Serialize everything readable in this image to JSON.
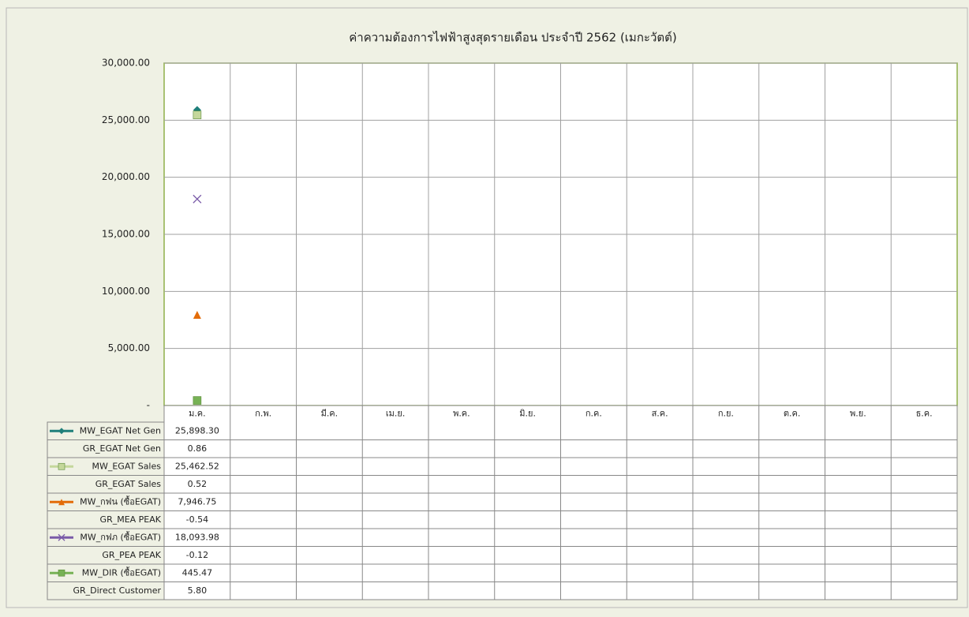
{
  "chart_data": {
    "type": "scatter",
    "title": "ค่าความต้องการไฟฟ้าสูงสุดรายเดือน ประจำปี 2562 (เมกะวัตต์)",
    "categories": [
      "ม.ค.",
      "ก.พ.",
      "มี.ค.",
      "เม.ย.",
      "พ.ค.",
      "มิ.ย.",
      "ก.ค.",
      "ส.ค.",
      "ก.ย.",
      "ต.ค.",
      "พ.ย.",
      "ธ.ค."
    ],
    "ylim": [
      0,
      30000
    ],
    "yticks": [
      {
        "value": 0,
        "label": "-"
      },
      {
        "value": 5000,
        "label": "5,000.00"
      },
      {
        "value": 10000,
        "label": "10,000.00"
      },
      {
        "value": 15000,
        "label": "15,000.00"
      },
      {
        "value": 20000,
        "label": "20,000.00"
      },
      {
        "value": 25000,
        "label": "25,000.00"
      },
      {
        "value": 30000,
        "label": "30,000.00"
      }
    ],
    "grid": true,
    "series": [
      {
        "name": "MW_EGAT Net Gen",
        "color": "#1f7f7a",
        "marker": "diamond",
        "values": [
          25898.3,
          null,
          null,
          null,
          null,
          null,
          null,
          null,
          null,
          null,
          null,
          null
        ],
        "value_labels": [
          "25,898.30",
          null,
          null,
          null,
          null,
          null,
          null,
          null,
          null,
          null,
          null,
          null
        ]
      },
      {
        "name": "GR_EGAT Net Gen",
        "values": [
          0.86,
          null,
          null,
          null,
          null,
          null,
          null,
          null,
          null,
          null,
          null,
          null
        ],
        "value_labels": [
          "0.86",
          null,
          null,
          null,
          null,
          null,
          null,
          null,
          null,
          null,
          null,
          null
        ]
      },
      {
        "name": "MW_EGAT Sales",
        "color": "#c4d79b",
        "marker": "square",
        "values": [
          25462.52,
          null,
          null,
          null,
          null,
          null,
          null,
          null,
          null,
          null,
          null,
          null
        ],
        "value_labels": [
          "25,462.52",
          null,
          null,
          null,
          null,
          null,
          null,
          null,
          null,
          null,
          null,
          null
        ]
      },
      {
        "name": "GR_EGAT Sales",
        "values": [
          0.52,
          null,
          null,
          null,
          null,
          null,
          null,
          null,
          null,
          null,
          null,
          null
        ],
        "value_labels": [
          "0.52",
          null,
          null,
          null,
          null,
          null,
          null,
          null,
          null,
          null,
          null,
          null
        ]
      },
      {
        "name": "MW_กฟน (ซื้อEGAT)",
        "color": "#e36c09",
        "marker": "triangle",
        "values": [
          7946.75,
          null,
          null,
          null,
          null,
          null,
          null,
          null,
          null,
          null,
          null,
          null
        ],
        "value_labels": [
          "7,946.75",
          null,
          null,
          null,
          null,
          null,
          null,
          null,
          null,
          null,
          null,
          null
        ]
      },
      {
        "name": "GR_MEA PEAK",
        "values": [
          -0.54,
          null,
          null,
          null,
          null,
          null,
          null,
          null,
          null,
          null,
          null,
          null
        ],
        "value_labels": [
          "-0.54",
          null,
          null,
          null,
          null,
          null,
          null,
          null,
          null,
          null,
          null,
          null
        ]
      },
      {
        "name": "MW_กฟภ (ซื้อEGAT)",
        "color": "#7a5ba8",
        "marker": "x",
        "values": [
          18093.98,
          null,
          null,
          null,
          null,
          null,
          null,
          null,
          null,
          null,
          null,
          null
        ],
        "value_labels": [
          "18,093.98",
          null,
          null,
          null,
          null,
          null,
          null,
          null,
          null,
          null,
          null,
          null
        ]
      },
      {
        "name": "GR_PEA PEAK",
        "values": [
          -0.12,
          null,
          null,
          null,
          null,
          null,
          null,
          null,
          null,
          null,
          null,
          null
        ],
        "value_labels": [
          "-0.12",
          null,
          null,
          null,
          null,
          null,
          null,
          null,
          null,
          null,
          null,
          null
        ]
      },
      {
        "name": "MW_DIR (ซื้อEGAT)",
        "color": "#77b255",
        "marker": "square",
        "values": [
          445.47,
          null,
          null,
          null,
          null,
          null,
          null,
          null,
          null,
          null,
          null,
          null
        ],
        "value_labels": [
          "445.47",
          null,
          null,
          null,
          null,
          null,
          null,
          null,
          null,
          null,
          null,
          null
        ]
      },
      {
        "name": "GR_Direct Customer",
        "values": [
          5.8,
          null,
          null,
          null,
          null,
          null,
          null,
          null,
          null,
          null,
          null,
          null
        ],
        "value_labels": [
          "5.80",
          null,
          null,
          null,
          null,
          null,
          null,
          null,
          null,
          null,
          null,
          null
        ]
      }
    ]
  }
}
